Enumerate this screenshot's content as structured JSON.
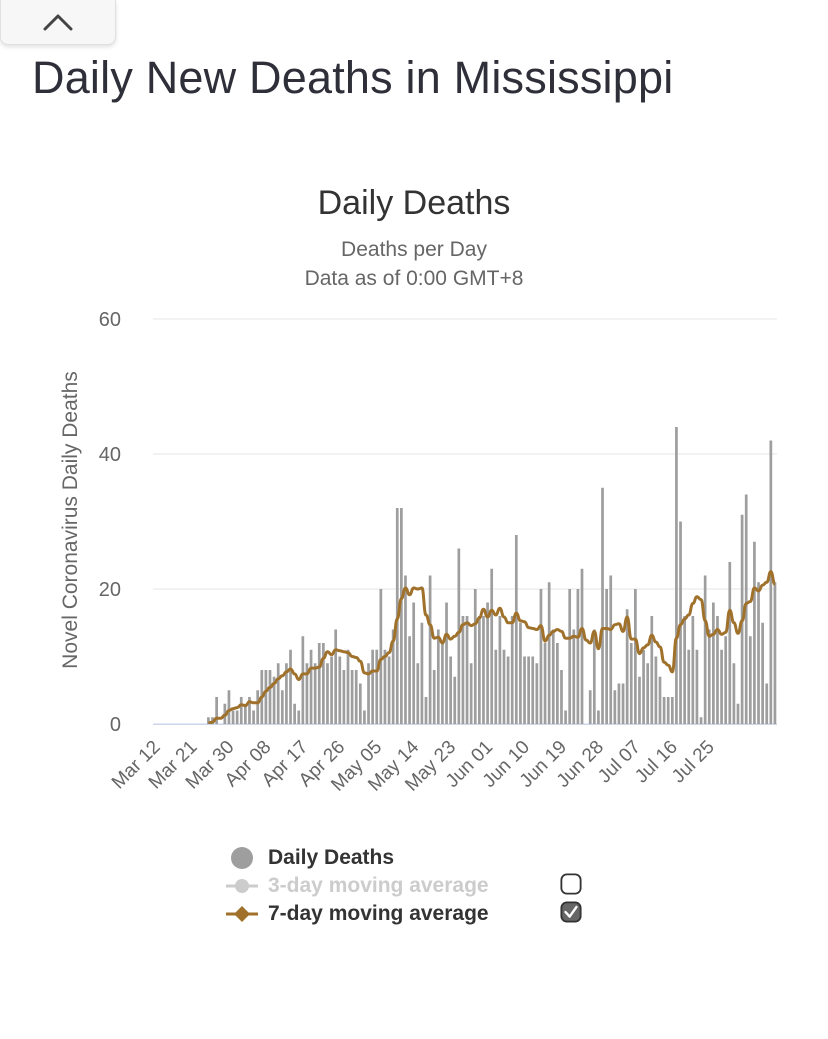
{
  "page": {
    "title": "Daily New Deaths in Mississippi",
    "collapse_icon": "chevron-up-icon"
  },
  "chart_data": {
    "type": "bar",
    "title": "Daily Deaths",
    "subtitle_line1": "Deaths per Day",
    "subtitle_line2": "Data as of 0:00 GMT+8",
    "ylabel": "Novel Coronavirus Daily Deaths",
    "xlabel": "",
    "ylim": [
      0,
      60
    ],
    "yticks": [
      0,
      20,
      40,
      60
    ],
    "xtick_labels": [
      "Mar 12",
      "Mar 21",
      "Mar 30",
      "Apr 08",
      "Apr 17",
      "Apr 26",
      "May 05",
      "May 14",
      "May 23",
      "Jun 01",
      "Jun 10",
      "Jun 19",
      "Jun 28",
      "Jul 07",
      "Jul 16",
      "Jul 25"
    ],
    "grid": true,
    "start_date": "Mar 12",
    "series": [
      {
        "name": "Daily Deaths",
        "kind": "bar",
        "color": "#9e9e9e",
        "values": [
          0,
          0,
          0,
          0,
          0,
          0,
          0,
          0,
          0,
          0,
          0,
          0,
          0,
          1,
          1,
          4,
          0,
          3,
          5,
          2,
          2,
          4,
          3,
          4,
          2,
          5,
          8,
          8,
          8,
          7,
          9,
          5,
          9,
          11,
          3,
          2,
          13,
          9,
          11,
          9,
          12,
          12,
          9,
          10,
          14,
          10,
          8,
          11,
          8,
          8,
          6,
          2,
          9,
          11,
          11,
          20,
          11,
          10,
          14,
          32,
          32,
          22,
          13,
          18,
          9,
          15,
          4,
          22,
          8,
          14,
          12,
          18,
          10,
          7,
          26,
          16,
          16,
          9,
          20,
          16,
          16,
          18,
          23,
          11,
          16,
          11,
          10,
          16,
          28,
          15,
          10,
          10,
          10,
          9,
          20,
          12,
          21,
          14,
          12,
          8,
          2,
          20,
          14,
          20,
          23,
          0,
          5,
          14,
          2,
          35,
          20,
          22,
          5,
          6,
          6,
          17,
          12,
          20,
          7,
          11,
          9,
          16,
          10,
          7,
          4,
          4,
          4,
          44,
          30,
          16,
          11,
          16,
          11,
          1,
          22,
          14,
          18,
          16,
          11,
          13,
          24,
          9,
          3,
          31,
          34,
          13,
          27,
          21,
          15,
          6,
          42,
          21
        ]
      },
      {
        "name": "3-day moving average",
        "kind": "line",
        "color": "#cccccc",
        "visible": false
      },
      {
        "name": "7-day moving average",
        "kind": "line",
        "color": "#a0712b",
        "visible": true
      }
    ]
  },
  "legend": {
    "items": [
      {
        "label": "Daily Deaths",
        "color": "#9e9e9e",
        "marker": "circle",
        "disabled": false,
        "has_checkbox": false
      },
      {
        "label": "3-day moving average",
        "color": "#cccccc",
        "marker": "circle-line",
        "disabled": true,
        "has_checkbox": true,
        "checked": false
      },
      {
        "label": "7-day moving average",
        "color": "#a0712b",
        "marker": "diamond-line",
        "disabled": false,
        "has_checkbox": true,
        "checked": true
      }
    ]
  }
}
